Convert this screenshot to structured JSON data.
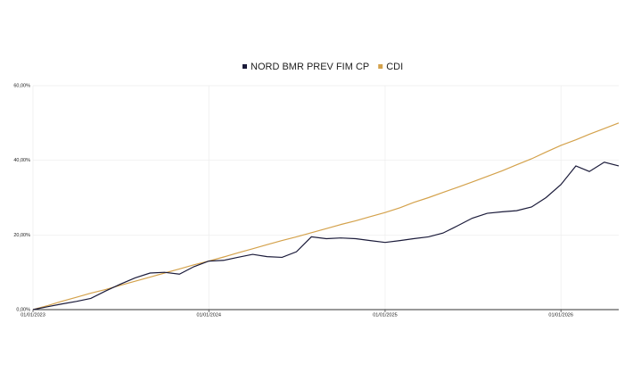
{
  "chart_data": {
    "type": "line",
    "x": [
      "2023-01-01",
      "2023-02-01",
      "2023-03-01",
      "2023-04-01",
      "2023-05-01",
      "2023-06-01",
      "2023-07-01",
      "2023-08-01",
      "2023-09-01",
      "2023-10-01",
      "2023-11-01",
      "2023-12-01",
      "2024-01-01",
      "2024-02-01",
      "2024-03-01",
      "2024-04-01",
      "2024-05-01",
      "2024-06-01",
      "2024-07-01",
      "2024-08-01",
      "2024-09-01",
      "2024-10-01",
      "2024-11-01",
      "2024-12-01",
      "2025-01-01",
      "2025-02-01",
      "2025-03-01",
      "2025-04-01",
      "2025-05-01",
      "2025-06-01",
      "2025-07-01",
      "2025-08-01",
      "2025-09-01",
      "2025-10-01",
      "2025-11-01",
      "2025-12-01",
      "2026-01-01",
      "2026-02-01",
      "2026-03-01",
      "2026-04-01",
      "2026-05-01"
    ],
    "series": [
      {
        "name": "NORD BMR PREV FIM CP",
        "color": "#1b1b3a",
        "values": [
          0,
          0.8,
          1.5,
          2.2,
          3.0,
          5.0,
          6.8,
          8.5,
          9.8,
          10.0,
          9.5,
          11.5,
          13.0,
          13.2,
          14.0,
          14.8,
          14.2,
          14.0,
          15.5,
          19.5,
          19.0,
          19.2,
          19.0,
          18.5,
          18.0,
          18.5,
          19.0,
          19.5,
          20.5,
          22.5,
          24.5,
          25.8,
          26.2,
          26.5,
          27.5,
          30.0,
          33.5,
          38.5,
          37.0,
          39.5,
          38.5
        ]
      },
      {
        "name": "CDI",
        "color": "#d4a24c",
        "values": [
          0,
          1.1,
          2.2,
          3.3,
          4.4,
          5.4,
          6.5,
          7.6,
          8.7,
          9.8,
          10.9,
          12.0,
          13.0,
          14.1,
          15.2,
          16.3,
          17.4,
          18.5,
          19.5,
          20.6,
          21.7,
          22.8,
          23.8,
          24.9,
          26.0,
          27.3,
          28.7,
          30.0,
          31.4,
          32.8,
          34.2,
          35.7,
          37.2,
          38.8,
          40.4,
          42.2,
          44.0,
          45.5,
          47.0,
          48.5,
          50.0
        ]
      }
    ],
    "xlim": [
      "2023-01-01",
      "2026-05-01"
    ],
    "xticks": [
      {
        "value": "2023-01-01",
        "label": "01/01/2023"
      },
      {
        "value": "2024-01-01",
        "label": "01/01/2024"
      },
      {
        "value": "2025-01-01",
        "label": "01/01/2025"
      },
      {
        "value": "2026-01-01",
        "label": "01/01/2026"
      }
    ],
    "ylim": [
      0,
      60
    ],
    "yticks": [
      {
        "value": 0,
        "label": "0,00%"
      },
      {
        "value": 20,
        "label": "20,00%"
      },
      {
        "value": 40,
        "label": "40,00%"
      },
      {
        "value": 60,
        "label": "60,00%"
      }
    ],
    "grid": true
  }
}
